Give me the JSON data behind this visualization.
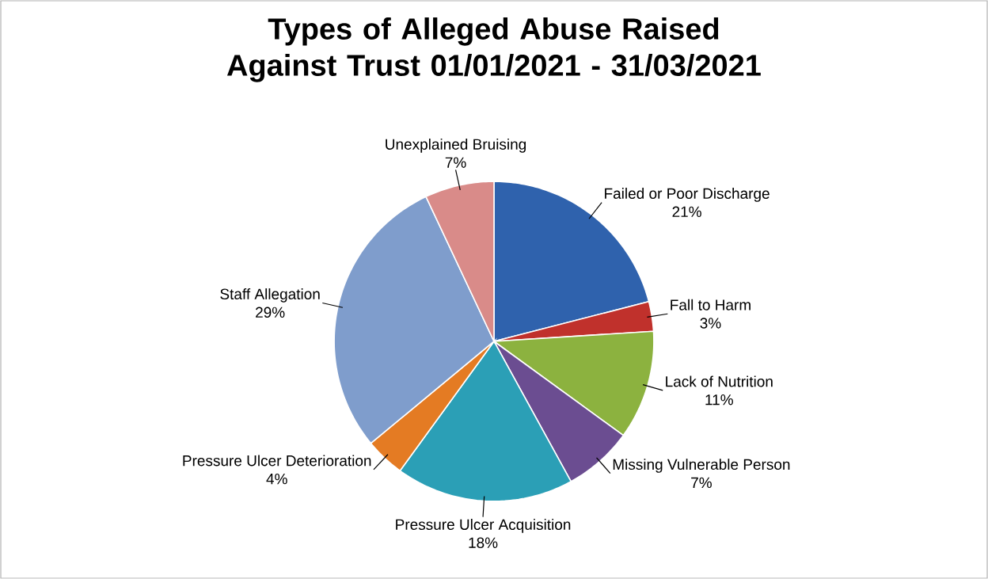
{
  "chart_data": {
    "type": "pie",
    "title": "Types of Alleged Abuse Raised Against Trust 01/01/2021 - 31/03/2021",
    "categories": [
      "Failed or Poor Discharge",
      "Fall to Harm",
      "Lack of Nutrition",
      "Missing Vulnerable Person",
      "Pressure Ulcer Acquisition",
      "Pressure Ulcer Deterioration",
      "Staff Allegation",
      "Unexplained Bruising"
    ],
    "values": [
      21,
      3,
      11,
      7,
      18,
      4,
      29,
      7
    ],
    "value_labels": [
      "21%",
      "3%",
      "11%",
      "7%",
      "18%",
      "4%",
      "29%",
      "7%"
    ],
    "colors": [
      "#2f62ad",
      "#c0312c",
      "#8cb23f",
      "#6b4d91",
      "#2b9fb6",
      "#e47b23",
      "#7f9dcc",
      "#d98b89"
    ]
  }
}
